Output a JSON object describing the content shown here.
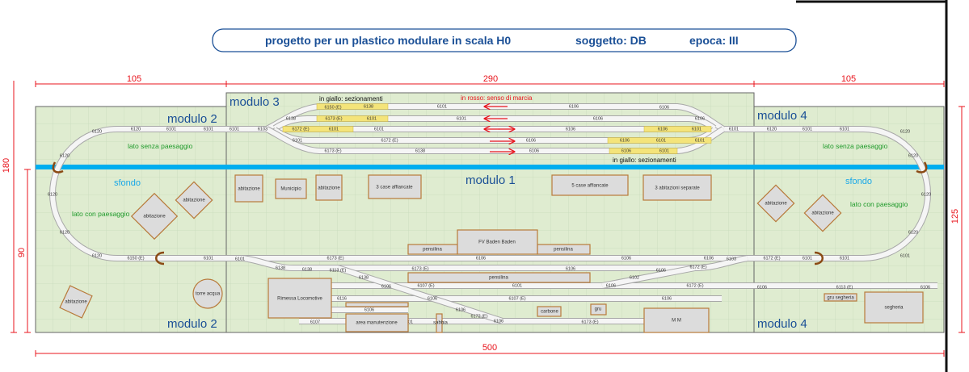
{
  "title": {
    "main": "progetto per un plastico modulare in scala H0",
    "subject": "soggetto: DB",
    "epoch": "epoca: III"
  },
  "dimensions": {
    "left_width": "105",
    "center_width": "290",
    "right_width": "105",
    "total_width": "500",
    "total_depth": "180",
    "front_depth": "90",
    "right_depth": "125"
  },
  "modules": {
    "m2_top": "modulo 2",
    "m2_bottom": "modulo 2",
    "m3": "modulo 3",
    "m1": "modulo 1",
    "m4_top": "modulo 4",
    "m4_bottom": "modulo 4"
  },
  "notes": {
    "sections_top": "in giallo: sezionamenti",
    "sections_bottom": "in giallo: sezionamenti",
    "direction": "in rosso: senso di marcia",
    "no_scenery_left": "lato senza paesaggio",
    "no_scenery_right": "lato senza paesaggio",
    "scenery_left": "lato con paesaggio",
    "scenery_right": "lato con paesaggio",
    "backdrop_left": "sfondo",
    "backdrop_right": "sfondo"
  },
  "buildings": {
    "m1_house1": "abitazione",
    "municipio": "Municipio",
    "m1_house2": "abitazione",
    "three_houses": "3 case affiancate",
    "five_houses": "5 case affiancate",
    "three_separate": "3 abitazioni separate",
    "station": "FV Baden Baden",
    "canopy_left": "pensilina",
    "canopy_right": "pensilina",
    "canopy_mid": "pensilina",
    "loco_shed": "Rimessa Locomotive",
    "maintenance": "area manutenzione",
    "sand": "sabbia",
    "coal": "carbone",
    "crane": "gru",
    "mm": "M M",
    "m2_house1": "abitazione",
    "m2_house2": "abitazione",
    "m2_house3": "abitazione",
    "water_tower": "torre acqua",
    "m4_house1": "abitazione",
    "m4_house2": "abitazione",
    "sawmill_crane": "gru segheria",
    "sawmill": "segheria"
  },
  "colors": {
    "baseboard": "#dfecd0",
    "backdrop": "#00aeef",
    "dimension": "#e8141c",
    "section": "#f4e47a",
    "direction_arrow": "#e8141c",
    "module_label": "#1a4f96",
    "buffer": "#8b4a14"
  },
  "track_labels": [
    "6120",
    "6120",
    "6120",
    "6120",
    "6120",
    "6120",
    "6101",
    "6101",
    "6101",
    "6103",
    "6150 (E)",
    "6101",
    "6101",
    "6173 (E)",
    "6106",
    "6106",
    "6106",
    "6103",
    "6172 (E)",
    "6101",
    "6101",
    "6101",
    "6120",
    "6120",
    "6120",
    "6120",
    "6120",
    "6101",
    "6101",
    "6101",
    "6150 (E)",
    "6138",
    "6101",
    "6106",
    "6106",
    "6138",
    "6173 (E)",
    "6101",
    "6101",
    "6106",
    "6106",
    "6172 (E)",
    "6101",
    "6101",
    "6106",
    "6106",
    "6101",
    "6101",
    "6172 (E)",
    "6106",
    "6106",
    "6101",
    "6101",
    "6173 (E)",
    "6138",
    "6106",
    "6106",
    "6101",
    "6138",
    "6138",
    "6113 (E)",
    "6173 (E)",
    "6106",
    "6106",
    "6172 (E)",
    "6138",
    "6102",
    "6102",
    "6106",
    "6107 (E)",
    "6101",
    "6106",
    "6172 (E)",
    "6106",
    "6113 (E)",
    "6106",
    "6116",
    "6106",
    "6107 (E)",
    "6106",
    "6106",
    "6106",
    "6172 (E)",
    "6107",
    "6101",
    "6106",
    "6173 (E)",
    "6106"
  ]
}
